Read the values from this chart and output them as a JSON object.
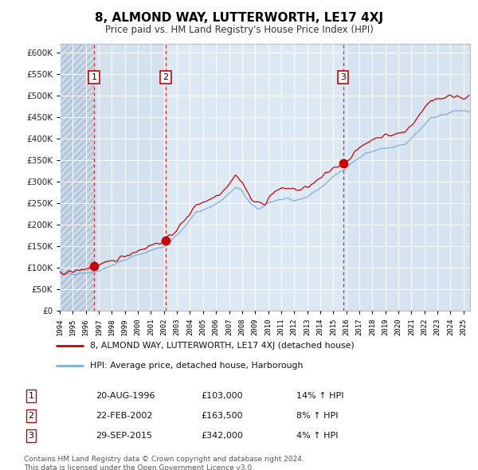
{
  "title": "8, ALMOND WAY, LUTTERWORTH, LE17 4XJ",
  "subtitle": "Price paid vs. HM Land Registry's House Price Index (HPI)",
  "background_color": "#ffffff",
  "plot_bg_color": "#dce9f5",
  "grid_color": "#ffffff",
  "sale_points": [
    {
      "date_num": 1996.64,
      "price": 103000,
      "label": "1"
    },
    {
      "date_num": 2002.14,
      "price": 163500,
      "label": "2"
    },
    {
      "date_num": 2015.75,
      "price": 342000,
      "label": "3"
    }
  ],
  "vline_dates": [
    1996.64,
    2002.14,
    2015.75
  ],
  "sale_table": [
    {
      "num": "1",
      "date": "20-AUG-1996",
      "price": "£103,000",
      "hpi": "14% ↑ HPI"
    },
    {
      "num": "2",
      "date": "22-FEB-2002",
      "price": "£163,500",
      "hpi": "8% ↑ HPI"
    },
    {
      "num": "3",
      "date": "29-SEP-2015",
      "price": "£342,000",
      "hpi": "4% ↑ HPI"
    }
  ],
  "legend_line1": "8, ALMOND WAY, LUTTERWORTH, LE17 4XJ (detached house)",
  "legend_line2": "HPI: Average price, detached house, Harborough",
  "footer_line1": "Contains HM Land Registry data © Crown copyright and database right 2024.",
  "footer_line2": "This data is licensed under the Open Government Licence v3.0.",
  "red_line_color": "#cc0000",
  "blue_line_color": "#7ab0d4",
  "vline_color": "#dd2222",
  "marker_color": "#cc0000",
  "xmin": 1994.0,
  "xmax": 2025.5,
  "ymin": 0,
  "ymax": 620000,
  "hpi_anchors": [
    [
      1994.0,
      85000
    ],
    [
      1995.0,
      87000
    ],
    [
      1996.64,
      90350
    ],
    [
      1997.5,
      100000
    ],
    [
      1999.0,
      118000
    ],
    [
      2001.0,
      140000
    ],
    [
      2002.14,
      151389
    ],
    [
      2003.5,
      190000
    ],
    [
      2004.5,
      230000
    ],
    [
      2005.5,
      240000
    ],
    [
      2006.5,
      258000
    ],
    [
      2007.5,
      285000
    ],
    [
      2008.0,
      278000
    ],
    [
      2008.7,
      245000
    ],
    [
      2009.3,
      235000
    ],
    [
      2010.0,
      252000
    ],
    [
      2011.0,
      258000
    ],
    [
      2012.0,
      255000
    ],
    [
      2013.0,
      265000
    ],
    [
      2014.0,
      285000
    ],
    [
      2015.0,
      310000
    ],
    [
      2015.75,
      328846
    ],
    [
      2016.5,
      345000
    ],
    [
      2017.5,
      365000
    ],
    [
      2018.5,
      375000
    ],
    [
      2019.5,
      378000
    ],
    [
      2020.5,
      385000
    ],
    [
      2021.5,
      415000
    ],
    [
      2022.5,
      450000
    ],
    [
      2023.5,
      455000
    ],
    [
      2024.5,
      465000
    ],
    [
      2025.3,
      460000
    ]
  ],
  "red_anchors": [
    [
      1994.0,
      88000
    ],
    [
      1995.0,
      90000
    ],
    [
      1996.64,
      103000
    ],
    [
      1997.5,
      108000
    ],
    [
      1999.0,
      128000
    ],
    [
      2001.0,
      152000
    ],
    [
      2002.14,
      163500
    ],
    [
      2003.5,
      205000
    ],
    [
      2004.5,
      248000
    ],
    [
      2005.5,
      258000
    ],
    [
      2006.5,
      278000
    ],
    [
      2007.5,
      315000
    ],
    [
      2008.0,
      300000
    ],
    [
      2008.7,
      258000
    ],
    [
      2009.3,
      248000
    ],
    [
      2009.8,
      252000
    ],
    [
      2010.5,
      278000
    ],
    [
      2011.5,
      285000
    ],
    [
      2012.5,
      280000
    ],
    [
      2013.5,
      295000
    ],
    [
      2014.5,
      318000
    ],
    [
      2015.0,
      332000
    ],
    [
      2015.75,
      342000
    ],
    [
      2016.5,
      362000
    ],
    [
      2017.5,
      390000
    ],
    [
      2018.5,
      405000
    ],
    [
      2019.5,
      408000
    ],
    [
      2020.5,
      415000
    ],
    [
      2021.5,
      450000
    ],
    [
      2022.5,
      490000
    ],
    [
      2023.5,
      495000
    ],
    [
      2024.5,
      500000
    ],
    [
      2025.3,
      495000
    ]
  ]
}
